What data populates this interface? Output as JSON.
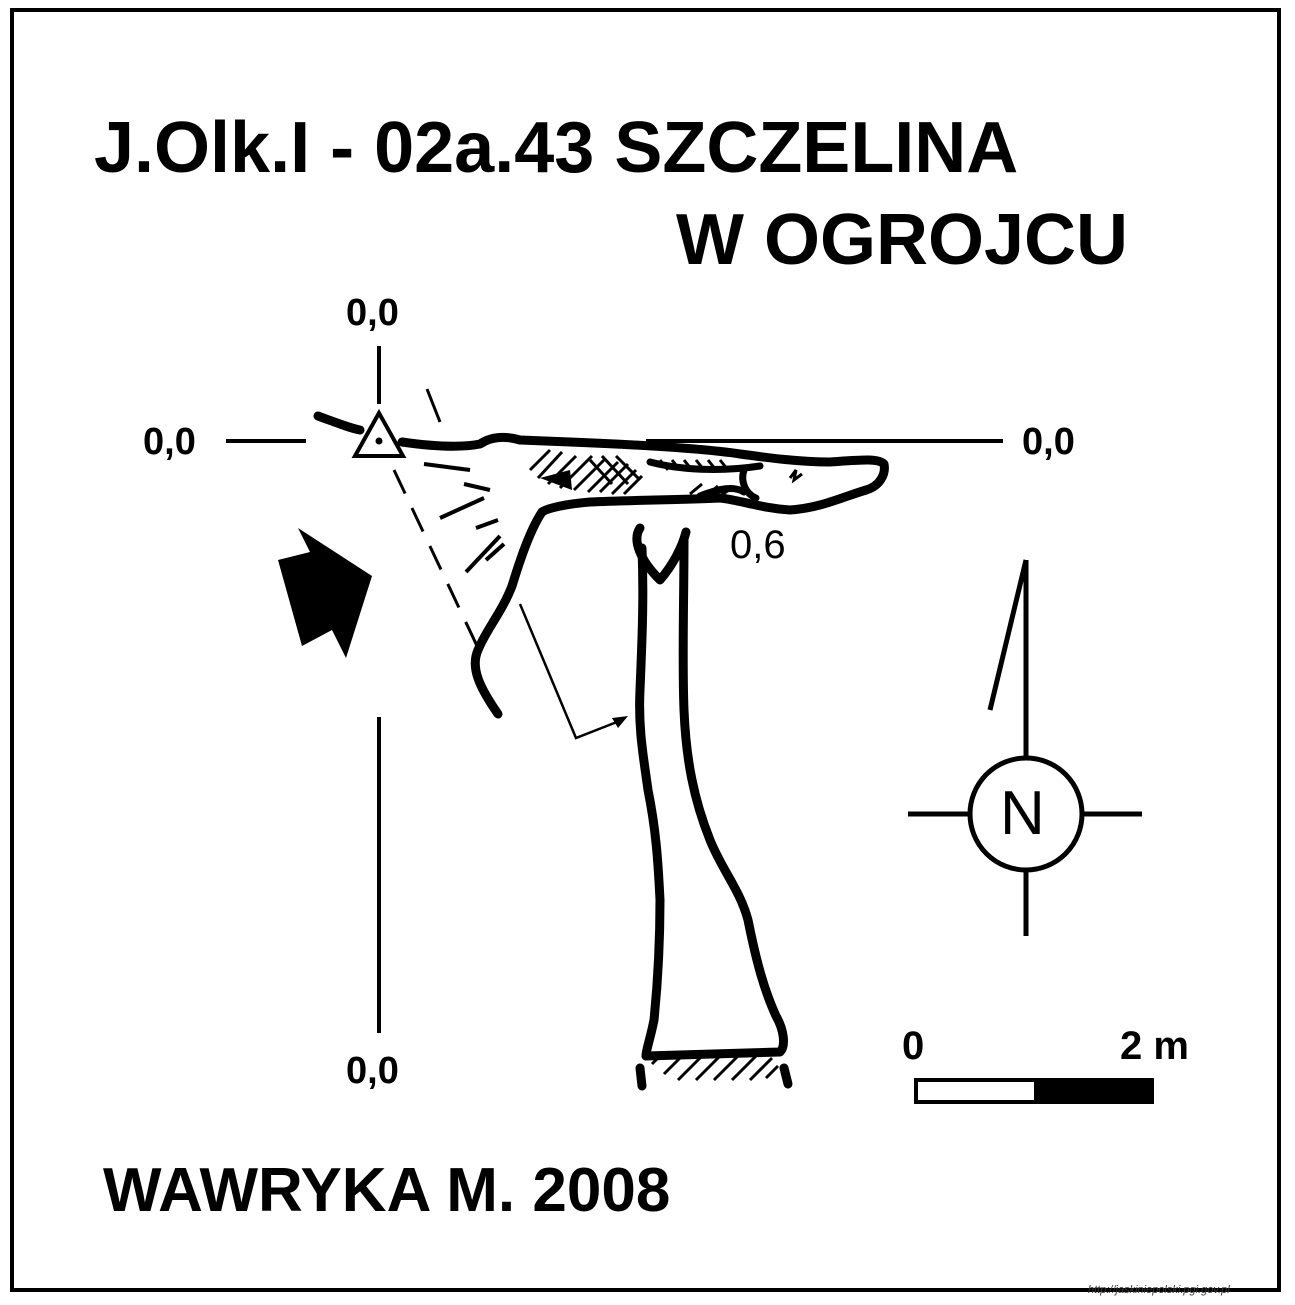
{
  "title": {
    "line1": "J.Olk.I - 02a.43  SZCZELINA",
    "line2": "W OGROJCU"
  },
  "datum_labels": {
    "top": "0,0",
    "left": "0,0",
    "right": "0,0",
    "bottom": "0,0"
  },
  "depth_label": "0,6",
  "north_arrow": {
    "letter": "N",
    "icon": "north-arrow-icon"
  },
  "scale_bar": {
    "start_label": "0",
    "end_label": "2 m"
  },
  "entrance_arrow_icon": "entrance-arrow-icon",
  "survey_station_icon": "survey-station-triangle-icon",
  "author": "WAWRYKA M. 2008",
  "source_url": "http://jaskiniepolski.pgi.gov.pl",
  "colors": {
    "ink": "#000000",
    "background": "#ffffff"
  }
}
